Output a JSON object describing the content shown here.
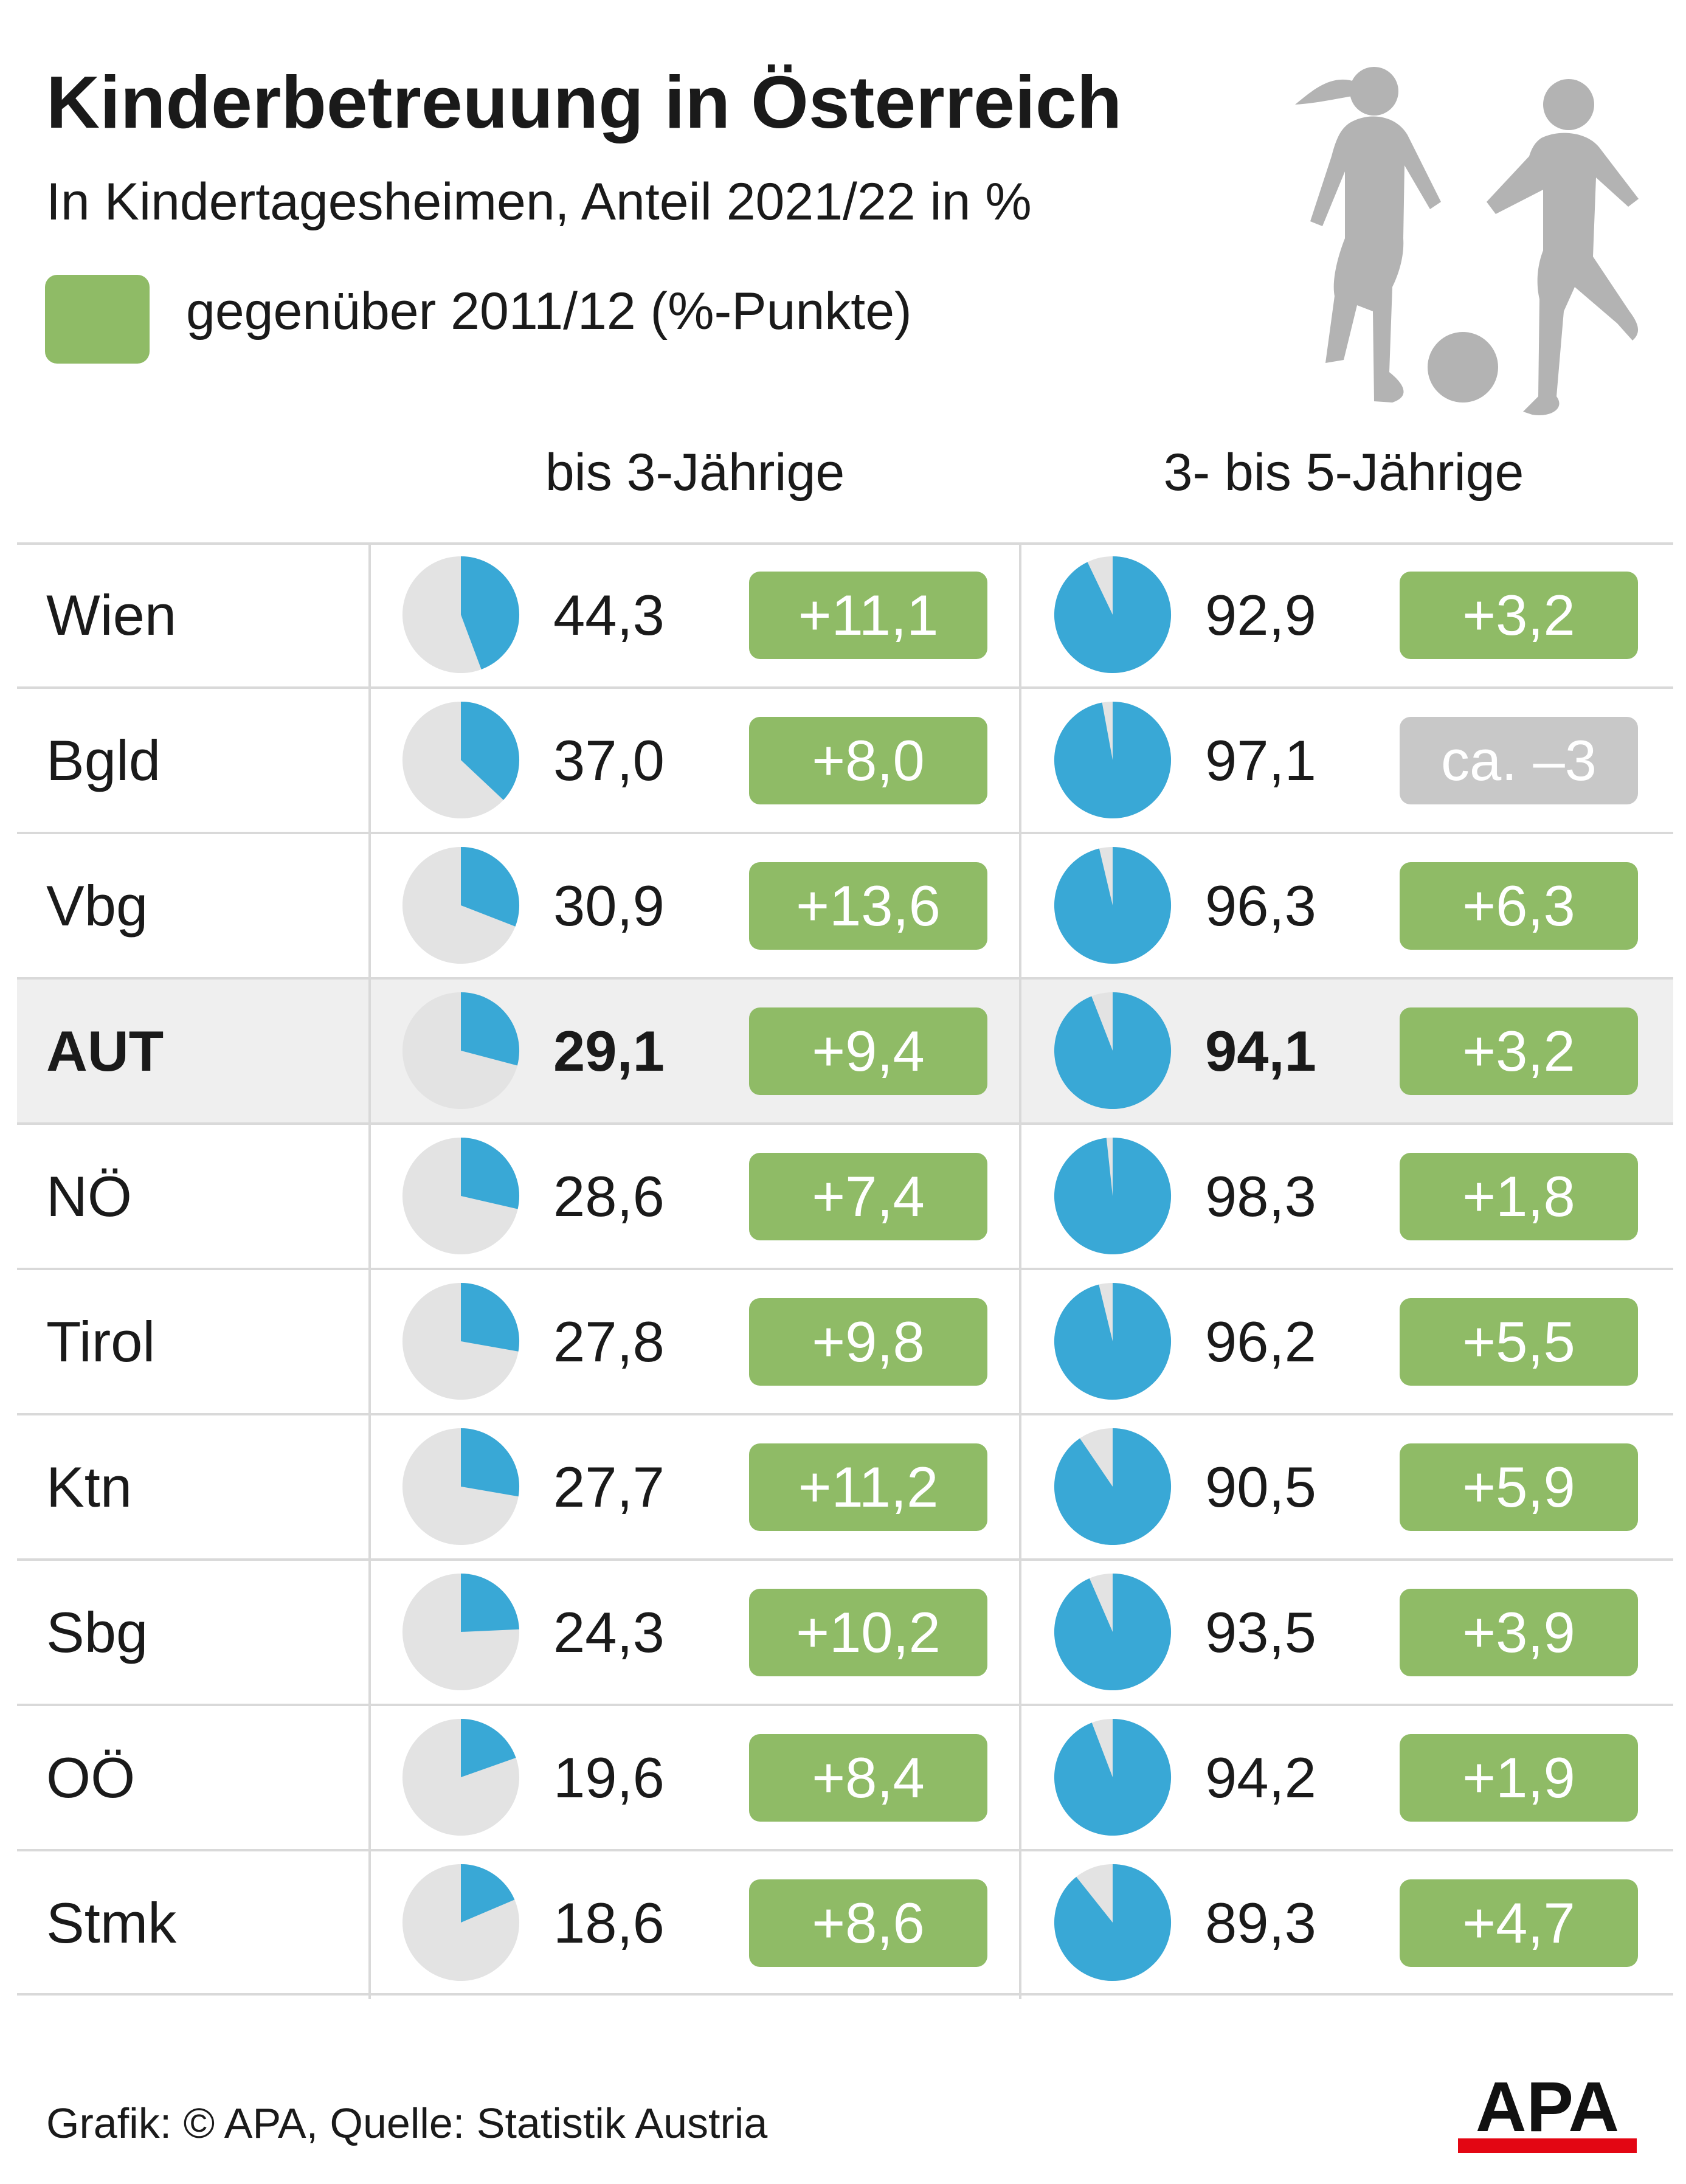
{
  "title": "Kinderbetreuung in Österreich",
  "subtitle": "In Kindertagesheimen, Anteil 2021/22 in %",
  "legend": {
    "label": "gegenüber 2011/12 (%-Punkte)",
    "color": "#8fbb66"
  },
  "colors": {
    "pie_fill": "#39a8d6",
    "pie_rest": "#e3e3e3",
    "change_positive": "#8fbb66",
    "change_estimate": "#c8c8c8",
    "highlight_row": "#efefef"
  },
  "illustration": "children-playing-football-silhouette",
  "source": "Grafik: © APA, Quelle: Statistik Austria",
  "logo": {
    "text": "APA",
    "color": "#e30613"
  },
  "chart_data": {
    "type": "table",
    "title": "Kinderbetreuung in Österreich",
    "subtitle": "In Kindertagesheimen, Anteil 2021/22 in %",
    "columns": [
      "bis 3-Jährige",
      "3- bis 5-Jährige"
    ],
    "rows": [
      {
        "region": "Wien",
        "u3": 44.3,
        "u3_label": "44,3",
        "u3_change": "+11,1",
        "o3": 92.9,
        "o3_label": "92,9",
        "o3_change": "+3,2",
        "o3_estimate": false,
        "highlight": false
      },
      {
        "region": "Bgld",
        "u3": 37.0,
        "u3_label": "37,0",
        "u3_change": "+8,0",
        "o3": 97.1,
        "o3_label": "97,1",
        "o3_change": "ca. –3",
        "o3_estimate": true,
        "highlight": false
      },
      {
        "region": "Vbg",
        "u3": 30.9,
        "u3_label": "30,9",
        "u3_change": "+13,6",
        "o3": 96.3,
        "o3_label": "96,3",
        "o3_change": "+6,3",
        "o3_estimate": false,
        "highlight": false
      },
      {
        "region": "AUT",
        "u3": 29.1,
        "u3_label": "29,1",
        "u3_change": "+9,4",
        "o3": 94.1,
        "o3_label": "94,1",
        "o3_change": "+3,2",
        "o3_estimate": false,
        "highlight": true
      },
      {
        "region": "NÖ",
        "u3": 28.6,
        "u3_label": "28,6",
        "u3_change": "+7,4",
        "o3": 98.3,
        "o3_label": "98,3",
        "o3_change": "+1,8",
        "o3_estimate": false,
        "highlight": false
      },
      {
        "region": "Tirol",
        "u3": 27.8,
        "u3_label": "27,8",
        "u3_change": "+9,8",
        "o3": 96.2,
        "o3_label": "96,2",
        "o3_change": "+5,5",
        "o3_estimate": false,
        "highlight": false
      },
      {
        "region": "Ktn",
        "u3": 27.7,
        "u3_label": "27,7",
        "u3_change": "+11,2",
        "o3": 90.5,
        "o3_label": "90,5",
        "o3_change": "+5,9",
        "o3_estimate": false,
        "highlight": false
      },
      {
        "region": "Sbg",
        "u3": 24.3,
        "u3_label": "24,3",
        "u3_change": "+10,2",
        "o3": 93.5,
        "o3_label": "93,5",
        "o3_change": "+3,9",
        "o3_estimate": false,
        "highlight": false
      },
      {
        "region": "OÖ",
        "u3": 19.6,
        "u3_label": "19,6",
        "u3_change": "+8,4",
        "o3": 94.2,
        "o3_label": "94,2",
        "o3_change": "+1,9",
        "o3_estimate": false,
        "highlight": false
      },
      {
        "region": "Stmk",
        "u3": 18.6,
        "u3_label": "18,6",
        "u3_change": "+8,6",
        "o3": 89.3,
        "o3_label": "89,3",
        "o3_change": "+4,7",
        "o3_estimate": false,
        "highlight": false
      }
    ]
  }
}
